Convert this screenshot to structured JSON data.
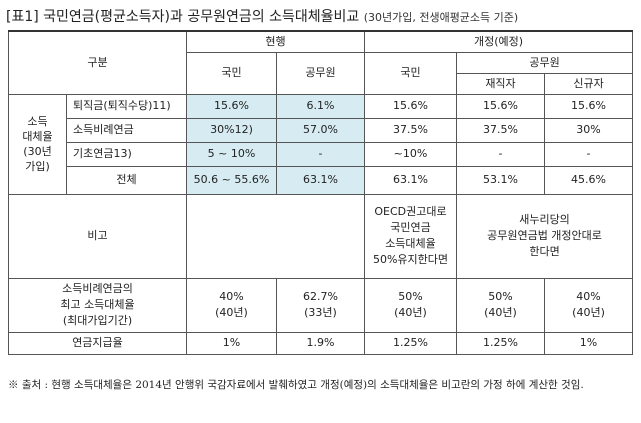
{
  "title": {
    "main": "[표1] 국민연금(평균소득자)과 공무원연금의 소득대체율비교",
    "sub": "(30년가입, 전생애평균소득 기준)"
  },
  "header": {
    "gubun": "구분",
    "current": "현행",
    "revised": "개정(예정)",
    "national": "국민",
    "public_servant": "공무원",
    "incumbent": "재직자",
    "new_hire": "신규자"
  },
  "side_label": "소득\n대체율\n(30년\n가입)",
  "rows": [
    {
      "label": "퇴직금(퇴직수당)11)",
      "cur_nat": "15.6%",
      "cur_pub": "6.1%",
      "rev_nat": "15.6%",
      "rev_inc": "15.6%",
      "rev_new": "15.6%"
    },
    {
      "label": "소득비례연금",
      "cur_nat": "30%12)",
      "cur_pub": "57.0%",
      "rev_nat": "37.5%",
      "rev_inc": "37.5%",
      "rev_new": "30%"
    },
    {
      "label": "기초연금13)",
      "cur_nat": "5 ~ 10%",
      "cur_pub": "-",
      "rev_nat": "~10%",
      "rev_inc": "-",
      "rev_new": "-"
    }
  ],
  "total": {
    "label": "전체",
    "cur_nat": "50.6 ~ 55.6%",
    "cur_pub": "63.1%",
    "rev_nat": "63.1%",
    "rev_inc": "53.1%",
    "rev_new": "45.6%"
  },
  "remark": {
    "label": "비고",
    "national_note": "OECD권고대로\n국민연금\n소득대체율\n50%유지한다면",
    "public_note": "새누리당의\n공무원연금법 개정안대로\n한다면"
  },
  "max_rate": {
    "label": "소득비례연금의\n최고 소득대체율\n(최대가입기간)",
    "cur_nat": "40%\n(40년)",
    "cur_pub": "62.7%\n(33년)",
    "rev_nat": "50%\n(40년)",
    "rev_inc": "50%\n(40년)",
    "rev_new": "40%\n(40년)"
  },
  "contribution": {
    "label": "연금지급율",
    "cur_nat": "1%",
    "cur_pub": "1.9%",
    "rev_nat": "1.25%",
    "rev_inc": "1.25%",
    "rev_new": "1%"
  },
  "footnote": "※ 출처 : 현행 소득대체율은 2014년 안행위 국감자료에서 발췌하였고 개정(예정)의 소득대체율은 비고란의 가정 하에 계산한 것임."
}
